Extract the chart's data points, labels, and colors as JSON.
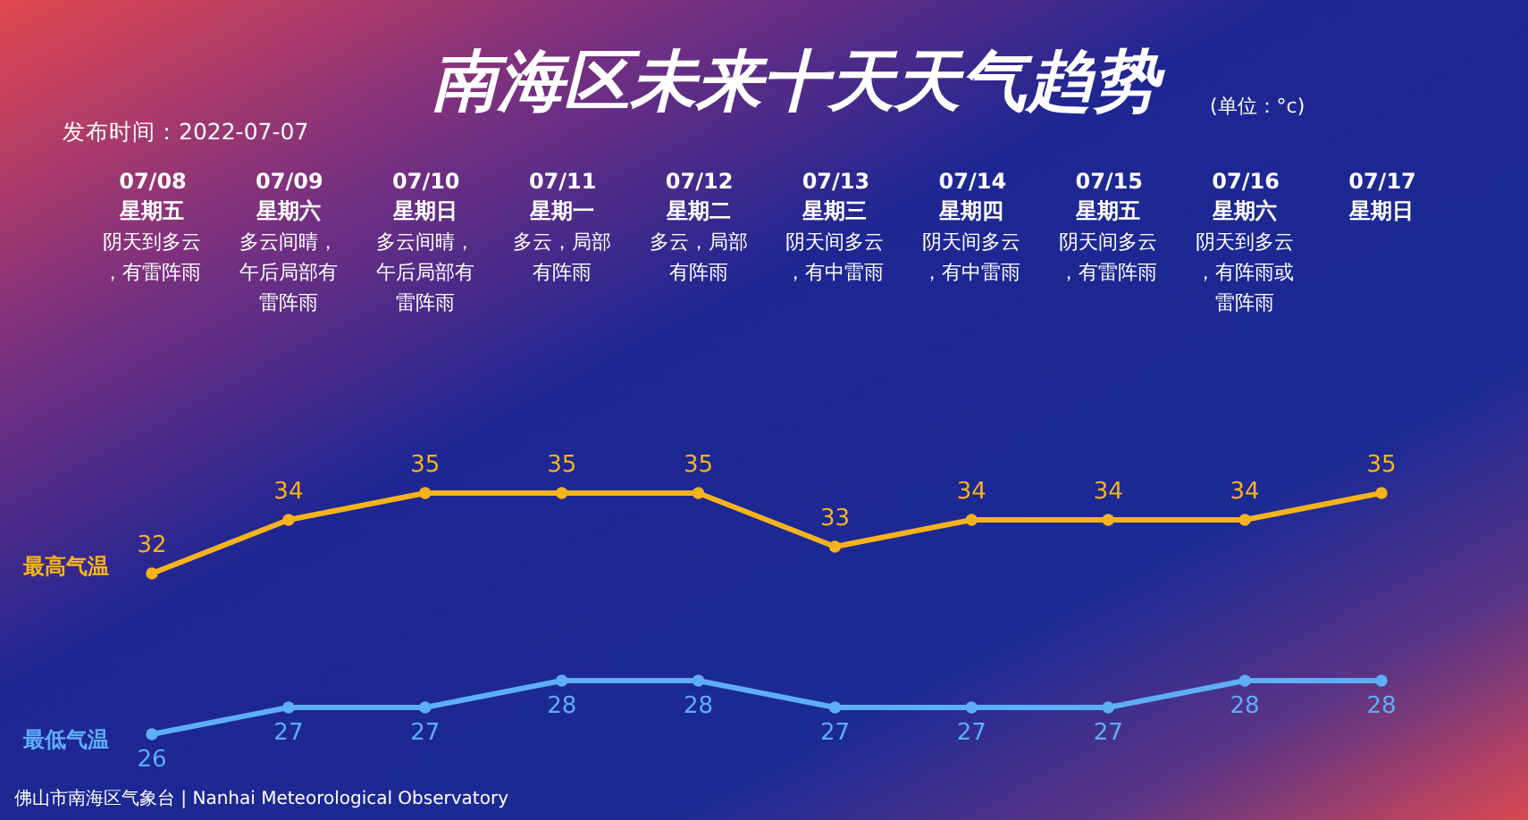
{
  "chart_data": {
    "type": "line",
    "title": "南海区未来十天天气趋势",
    "subtitle": "发布时间：2022-07-07",
    "annotations": [
      "(单位：°c)",
      "佛山市南海区气象台 | Nanhai Meteorological Observatory",
      "星期五",
      "阴天到多云，有雷阵雨",
      "星期六",
      "多云间晴，午后局部有雷阵雨",
      "星期日",
      "多云间晴，午后局部有雷阵雨",
      "星期一",
      "多云，局部有阵雨",
      "星期二",
      "多云，局部有阵雨",
      "星期三",
      "阴天间多云，有中雷雨",
      "星期四",
      "阴天间多云，有中雷雨",
      "星期五",
      "阴天间多云，有雷阵雨",
      "星期六",
      "阴天到多云，有阵雨或雷阵雨",
      "星期日"
    ],
    "categories": [
      "07/08",
      "07/09",
      "07/10",
      "07/11",
      "07/12",
      "07/13",
      "07/14",
      "07/15",
      "07/16",
      "07/17"
    ],
    "series": [
      {
        "name": "最高气温",
        "color": "#f5b31c",
        "values": [
          32,
          34,
          35,
          35,
          35,
          33,
          34,
          34,
          34,
          35
        ]
      },
      {
        "name": "最低气温",
        "color": "#5eaef5",
        "values": [
          26,
          27,
          27,
          28,
          28,
          27,
          27,
          27,
          28,
          28
        ]
      }
    ],
    "data_labels": true,
    "marker": "circle",
    "tick_labels": "x"
  }
}
